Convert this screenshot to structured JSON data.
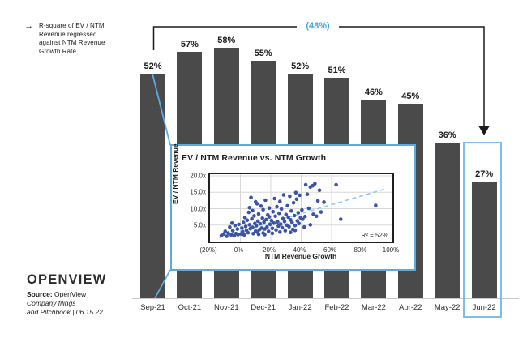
{
  "annotation": {
    "arrow": "→",
    "text": "R-square of EV / NTM Revenue regressed against NTM Revenue Growth Rate."
  },
  "callout_value": "(48%)",
  "colors": {
    "bar": "#4a4a4a",
    "accent_blue": "#5aace0",
    "callout_text_blue": "#4da4dc",
    "scatter_dot": "#3b54a5",
    "trend_line": "#8ec9ee",
    "bracket": "#1a1a1a",
    "grid": "#d8d8d8",
    "axis_line": "#c9c9c9"
  },
  "chart_data": [
    {
      "type": "bar",
      "title": "",
      "categories": [
        "Sep-21",
        "Oct-21",
        "Nov-21",
        "Dec-21",
        "Jan-22",
        "Feb-22",
        "Mar-22",
        "Apr-22",
        "May-22",
        "Jun-22"
      ],
      "values": [
        52,
        57,
        58,
        55,
        52,
        51,
        46,
        45,
        36,
        27
      ],
      "value_suffix": "%",
      "ylim": [
        0,
        60
      ],
      "grid": "off",
      "highlight_category": "Jun-22",
      "bracket_label": "(48%)"
    },
    {
      "type": "scatter",
      "title": "EV / NTM Revenue vs. NTM Growth",
      "xlabel": "NTM Revenue Growth",
      "ylabel": "EV / NTM Revenue",
      "xlim": [
        -20,
        100
      ],
      "ylim": [
        0,
        20.5
      ],
      "x_ticks": [
        {
          "value": -20,
          "label": "(20%)"
        },
        {
          "value": 0,
          "label": "0%"
        },
        {
          "value": 20,
          "label": "20%"
        },
        {
          "value": 40,
          "label": "40%"
        },
        {
          "value": 60,
          "label": "60%"
        },
        {
          "value": 80,
          "label": "80%"
        },
        {
          "value": 100,
          "label": "100%"
        }
      ],
      "y_ticks": [
        {
          "value": 20,
          "label": "20.0x"
        },
        {
          "value": 15,
          "label": "15.0x"
        },
        {
          "value": 10,
          "label": "10.0x"
        },
        {
          "value": 5,
          "label": "5.0x"
        }
      ],
      "grid": "on",
      "r_squared_label": "R² = 52%",
      "trend_line": {
        "x1": -14,
        "y1": 1.2,
        "x2": 96,
        "y2": 16.1,
        "style": "dashed"
      },
      "points": [
        [
          -12.5,
          1.8
        ],
        [
          -11,
          2.3
        ],
        [
          -10,
          3.1
        ],
        [
          -9,
          1.6
        ],
        [
          -8,
          2.6
        ],
        [
          -7,
          4.4
        ],
        [
          -6,
          2.0
        ],
        [
          -5.5,
          5.6
        ],
        [
          -5,
          3.3
        ],
        [
          -4,
          1.8
        ],
        [
          -3.5,
          4.9
        ],
        [
          -3,
          2.4
        ],
        [
          -2,
          3.8
        ],
        [
          -1.5,
          2.1
        ],
        [
          -1,
          5.2
        ],
        [
          0.5,
          2.3
        ],
        [
          1,
          4.1
        ],
        [
          1.5,
          3.0
        ],
        [
          2,
          5.8
        ],
        [
          2.5,
          2.0
        ],
        [
          3,
          7.3
        ],
        [
          3.5,
          4.6
        ],
        [
          4,
          3.4
        ],
        [
          4.5,
          6.5
        ],
        [
          5,
          2.7
        ],
        [
          5.5,
          8.9
        ],
        [
          6,
          5.1
        ],
        [
          6,
          10.3
        ],
        [
          6.5,
          3.9
        ],
        [
          7,
          13.4
        ],
        [
          7.5,
          6.9
        ],
        [
          8,
          4.3
        ],
        [
          8,
          9.4
        ],
        [
          8.5,
          2.4
        ],
        [
          9,
          7.8
        ],
        [
          9.5,
          5.5
        ],
        [
          10,
          3.2
        ],
        [
          10,
          12.1
        ],
        [
          10.5,
          4.8
        ],
        [
          11,
          2.9
        ],
        [
          11,
          11.5
        ],
        [
          11.5,
          6.2
        ],
        [
          12,
          2.2
        ],
        [
          12,
          8.4
        ],
        [
          12.5,
          3.6
        ],
        [
          13,
          5.4
        ],
        [
          13.5,
          10.8
        ],
        [
          14,
          4.1
        ],
        [
          14.5,
          7.1
        ],
        [
          15,
          2.6
        ],
        [
          15,
          9.7
        ],
        [
          15.5,
          5.9
        ],
        [
          16,
          2.1
        ],
        [
          16,
          3.8
        ],
        [
          16.5,
          12.6
        ],
        [
          17,
          6.7
        ],
        [
          17.5,
          4.4
        ],
        [
          18,
          8.1
        ],
        [
          18.5,
          3.1
        ],
        [
          19,
          7.5
        ],
        [
          19,
          10.2
        ],
        [
          19.5,
          5.2
        ],
        [
          20.5,
          6.4
        ],
        [
          21,
          2.5
        ],
        [
          21,
          4.0
        ],
        [
          21.5,
          9.1
        ],
        [
          22,
          5.6
        ],
        [
          22.5,
          13.1
        ],
        [
          23,
          7.7
        ],
        [
          23.5,
          3.5
        ],
        [
          24,
          10.6
        ],
        [
          24.5,
          6.0
        ],
        [
          25,
          4.7
        ],
        [
          25.5,
          8.6
        ],
        [
          26,
          2.9
        ],
        [
          26,
          12.2
        ],
        [
          26.5,
          5.3
        ],
        [
          27,
          9.9
        ],
        [
          27.5,
          4.2
        ],
        [
          28,
          7.0
        ],
        [
          28.5,
          14.2
        ],
        [
          29,
          6.1
        ],
        [
          29.5,
          3.3
        ],
        [
          30,
          8.2
        ],
        [
          30.5,
          5.0
        ],
        [
          31,
          10.9
        ],
        [
          31.5,
          7.4
        ],
        [
          32,
          4.5
        ],
        [
          32.5,
          13.8
        ],
        [
          33,
          2.8
        ],
        [
          33,
          6.6
        ],
        [
          33.5,
          9.3
        ],
        [
          34,
          5.8
        ],
        [
          34.5,
          3.7
        ],
        [
          35,
          11.8
        ],
        [
          35.5,
          7.9
        ],
        [
          36,
          3.4
        ],
        [
          36,
          4.9
        ],
        [
          36.5,
          14.9
        ],
        [
          37,
          12.9
        ],
        [
          37.5,
          6.3
        ],
        [
          38,
          8.8
        ],
        [
          38.5,
          5.5
        ],
        [
          39,
          14.1
        ],
        [
          39.5,
          7.2
        ],
        [
          40.5,
          9.6
        ],
        [
          41,
          6.8
        ],
        [
          42,
          4.4
        ],
        [
          42.5,
          7.6
        ],
        [
          43,
          17.3
        ],
        [
          44,
          14.4
        ],
        [
          45,
          10.1
        ],
        [
          46,
          5.1
        ],
        [
          46,
          16.6
        ],
        [
          47.5,
          17.0
        ],
        [
          48,
          8.3
        ],
        [
          49,
          17.6
        ],
        [
          50,
          7.7
        ],
        [
          51,
          12.4
        ],
        [
          52,
          15.6
        ],
        [
          53,
          9.0
        ],
        [
          55,
          12.0
        ],
        [
          63,
          17.3
        ],
        [
          66,
          6.8
        ],
        [
          89,
          11.0
        ]
      ]
    }
  ],
  "footer": {
    "logo": "OPENVIEW",
    "source_label": "Source:",
    "source_value": "OpenView",
    "source_line2": "Company filings",
    "source_line3": "and Pitchbook | 06.15.22"
  }
}
